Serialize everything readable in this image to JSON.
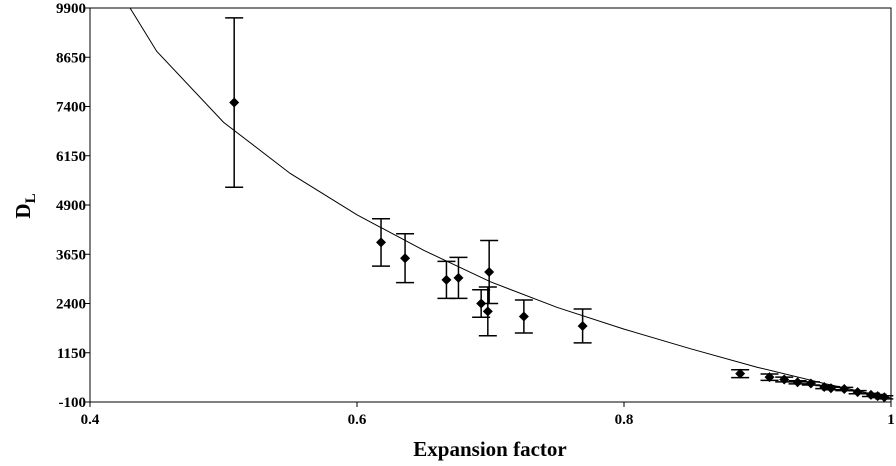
{
  "chart_data": {
    "type": "scatter",
    "xlabel": "Expansion factor",
    "ylabel": "D",
    "ylabel_subscript": "L",
    "xlim": [
      0.4,
      1
    ],
    "ylim": [
      -100,
      9900
    ],
    "xticks": [
      0.4,
      0.6,
      0.8,
      1
    ],
    "yticks": [
      -100,
      1150,
      2400,
      3650,
      4900,
      6150,
      7400,
      8650,
      9900
    ],
    "series": [
      {
        "color": "#000000",
        "x": [
          0.508,
          0.618,
          0.636,
          0.667,
          0.676,
          0.693,
          0.698,
          0.699,
          0.725,
          0.769,
          0.887,
          0.909,
          0.92,
          0.93,
          0.94,
          0.95,
          0.955,
          0.965,
          0.975,
          0.985,
          0.99,
          0.995
        ],
        "values": [
          7500,
          3950,
          3550,
          3000,
          3050,
          2400,
          2200,
          3200,
          2070,
          1830,
          620,
          530,
          470,
          400,
          370,
          280,
          250,
          230,
          150,
          80,
          50,
          20
        ],
        "errors": [
          2150,
          600,
          620,
          470,
          520,
          350,
          620,
          800,
          420,
          430,
          100,
          80,
          60,
          40,
          40,
          40,
          40,
          40,
          40,
          40,
          40,
          40
        ]
      }
    ],
    "fit": {
      "color": "#000000",
      "x": [
        0.43,
        0.45,
        0.5,
        0.55,
        0.6,
        0.65,
        0.7,
        0.75,
        0.8,
        0.85,
        0.9,
        0.95,
        1
      ],
      "values": [
        9900,
        8800,
        7000,
        5700,
        4650,
        3750,
        2950,
        2300,
        1750,
        1250,
        780,
        370,
        0
      ]
    }
  }
}
